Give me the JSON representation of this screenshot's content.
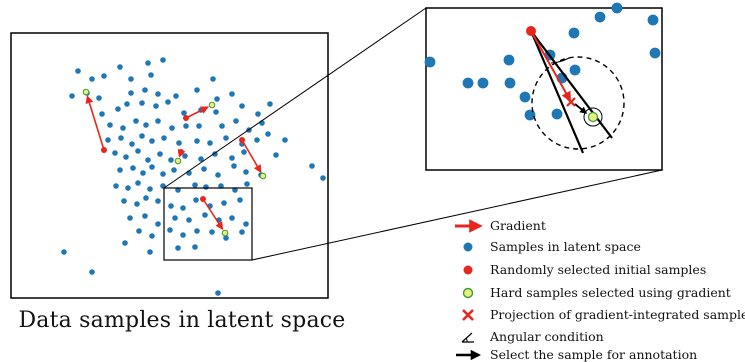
{
  "caption": "Data samples in latent space",
  "colors": {
    "latent_sample": "#1f77b4",
    "initial_sample": "#e8261c",
    "hard_sample_fill": "#e6f07a",
    "hard_sample_edge": "#3a9a3a",
    "gradient_arrow": "#e8261c",
    "projection_cross": "#e8261c",
    "frame": "#000000"
  },
  "legend": {
    "items": [
      {
        "icon": "red-right-arrow-icon",
        "label": "Gradient"
      },
      {
        "icon": "blue-dot-icon",
        "label": "Samples in latent space"
      },
      {
        "icon": "red-dot-icon",
        "label": "Randomly selected initial samples"
      },
      {
        "icon": "yellow-green-ring-dot-icon",
        "label": "Hard samples selected using gradient"
      },
      {
        "icon": "red-cross-icon",
        "label": "Projection of gradient-integrated sample"
      },
      {
        "icon": "angle-icon",
        "label": "Angular condition"
      },
      {
        "icon": "black-right-arrow-icon",
        "label": "Select the sample for annotation"
      }
    ]
  }
}
